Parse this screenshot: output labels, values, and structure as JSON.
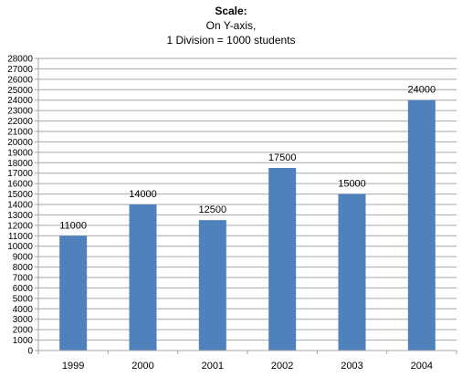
{
  "chart_data": {
    "type": "bar",
    "title": "Scale:",
    "subtitle_lines": [
      "On Y-axis,",
      "1 Division = 1000 students"
    ],
    "xlabel": "",
    "ylabel": "",
    "categories": [
      "1999",
      "2000",
      "2001",
      "2002",
      "2003",
      "2004"
    ],
    "values": [
      11000,
      14000,
      12500,
      17500,
      15000,
      24000
    ],
    "data_labels": [
      "11000",
      "14000",
      "12500",
      "17500",
      "15000",
      "24000"
    ],
    "ylim": [
      0,
      28000
    ],
    "ytick_step": 1000,
    "grid": true,
    "legend": "none",
    "bar_color": "#4F81BD",
    "grid_color": "#A6A6A6"
  }
}
